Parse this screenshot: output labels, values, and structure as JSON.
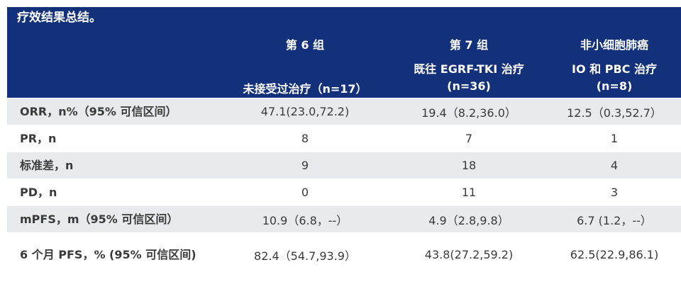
{
  "title": "疗效结果总结。",
  "columns": [
    {
      "line1": "第 6 组",
      "line2": "",
      "line3": "未接受过治疗（n=17）"
    },
    {
      "line1": "第 7 组",
      "line2": "既往 EGRF-TKI 治疗",
      "line3": "(n=36)"
    },
    {
      "line1": "非小细胞肺癌",
      "line2": "IO 和 PBC 治疗",
      "line3": "(n=8)"
    }
  ],
  "rows": [
    {
      "label": "ORR，n%（95% 可信区间）",
      "values": [
        "47.1(23.0,72.2)",
        "19.4（8.2,36.0）",
        "12.5（0.3,52.7）"
      ]
    },
    {
      "label": "PR，n",
      "values": [
        "8",
        "7",
        "1"
      ]
    },
    {
      "label": "标准差，n",
      "values": [
        "9",
        "18",
        "4"
      ]
    },
    {
      "label": "PD，n",
      "values": [
        "0",
        "11",
        "3"
      ]
    },
    {
      "label": "mPFS，m（95% 可信区间）",
      "values": [
        "10.9（6.8，--）",
        "4.9（2.8,9.8）",
        "6.7 (1.2，--）"
      ]
    },
    {
      "label": "6 个月 PFS，% (95% 可信区间)",
      "values": [
        "82.4（54.7,93.9）",
        "43.8(27.2,59.2)",
        "62.5(22.9,86.1)"
      ]
    }
  ],
  "colors": {
    "header_bg": "#13307a",
    "header_text": "#ffffff",
    "row_shade": "#e9eaed",
    "text": "#3a3a3a"
  }
}
